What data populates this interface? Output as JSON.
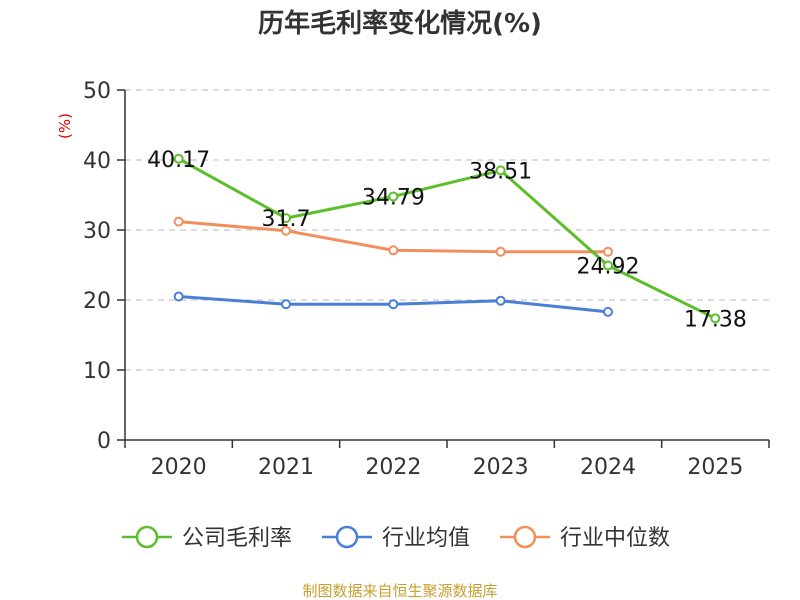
{
  "chart_data": {
    "type": "line",
    "title": "历年毛利率变化情况(%)",
    "ylabel": "(%)",
    "xlabel": "",
    "categories": [
      "2020",
      "2021",
      "2022",
      "2023",
      "2024",
      "2025"
    ],
    "ylim": [
      0,
      50
    ],
    "yticks": [
      0,
      10,
      20,
      30,
      40,
      50
    ],
    "grid": true,
    "legend_position": "bottom",
    "series": [
      {
        "name": "公司毛利率",
        "color": "#5cbf2a",
        "values": [
          40.17,
          31.7,
          34.79,
          38.51,
          24.92,
          17.38
        ],
        "labels": [
          "40.17",
          "31.7",
          "34.79",
          "38.51",
          "24.92",
          "17.38"
        ]
      },
      {
        "name": "行业均值",
        "color": "#4a7fd6",
        "values": [
          20.5,
          19.4,
          19.4,
          19.9,
          18.3,
          null
        ]
      },
      {
        "name": "行业中位数",
        "color": "#f28e5c",
        "values": [
          31.2,
          29.9,
          27.1,
          26.9,
          26.9,
          null
        ]
      }
    ],
    "source": "制图数据来自恒生聚源数据库"
  }
}
